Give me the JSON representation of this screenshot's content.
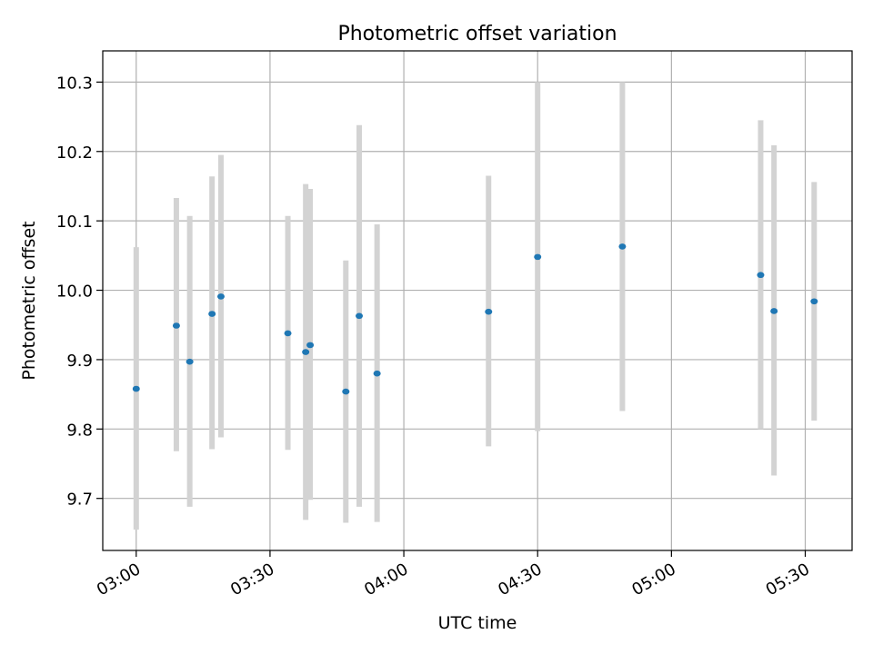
{
  "chart_data": {
    "type": "scatter",
    "title": "Photometric offset variation",
    "xlabel": "UTC time",
    "ylabel": "Photometric offset",
    "x_ticks": [
      "03:00",
      "03:30",
      "04:00",
      "04:30",
      "05:00",
      "05:30"
    ],
    "x_tick_minutes": [
      180,
      210,
      240,
      270,
      300,
      330
    ],
    "xlim_minutes": [
      172.5,
      340.5
    ],
    "y_ticks": [
      "9.7",
      "9.8",
      "9.9",
      "10.0",
      "10.1",
      "10.2",
      "10.3"
    ],
    "y_tick_values": [
      9.7,
      9.8,
      9.9,
      10.0,
      10.1,
      10.2,
      10.3
    ],
    "ylim": [
      9.625,
      10.345
    ],
    "grid": true,
    "colors": {
      "points": "#1f77b4",
      "errorbars": "#d3d3d3",
      "grid": "#b0b0b0"
    },
    "points": [
      {
        "t": "03:00",
        "y": 9.858,
        "ylow": 9.655,
        "yhigh": 10.062
      },
      {
        "t": "03:09",
        "y": 9.949,
        "ylow": 9.768,
        "yhigh": 10.133
      },
      {
        "t": "03:12",
        "y": 9.897,
        "ylow": 9.688,
        "yhigh": 10.107
      },
      {
        "t": "03:17",
        "y": 9.966,
        "ylow": 9.771,
        "yhigh": 10.164
      },
      {
        "t": "03:19",
        "y": 9.991,
        "ylow": 9.788,
        "yhigh": 10.195
      },
      {
        "t": "03:34",
        "y": 9.938,
        "ylow": 9.77,
        "yhigh": 10.107
      },
      {
        "t": "03:38",
        "y": 9.911,
        "ylow": 9.669,
        "yhigh": 10.153
      },
      {
        "t": "03:39",
        "y": 9.921,
        "ylow": 9.698,
        "yhigh": 10.146
      },
      {
        "t": "03:47",
        "y": 9.854,
        "ylow": 9.665,
        "yhigh": 10.043
      },
      {
        "t": "03:50",
        "y": 9.963,
        "ylow": 9.688,
        "yhigh": 10.238
      },
      {
        "t": "03:54",
        "y": 9.88,
        "ylow": 9.666,
        "yhigh": 10.095
      },
      {
        "t": "04:19",
        "y": 9.969,
        "ylow": 9.775,
        "yhigh": 10.165
      },
      {
        "t": "04:30",
        "y": 10.048,
        "ylow": 9.797,
        "yhigh": 10.3
      },
      {
        "t": "04:49",
        "y": 10.063,
        "ylow": 9.826,
        "yhigh": 10.3
      },
      {
        "t": "05:20",
        "y": 10.022,
        "ylow": 9.8,
        "yhigh": 10.245
      },
      {
        "t": "05:23",
        "y": 9.97,
        "ylow": 9.733,
        "yhigh": 10.209
      },
      {
        "t": "05:32",
        "y": 9.984,
        "ylow": 9.812,
        "yhigh": 10.156
      }
    ]
  }
}
